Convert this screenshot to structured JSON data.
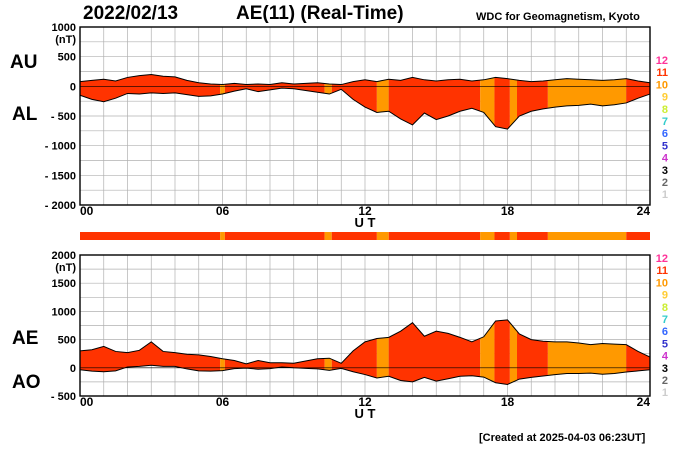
{
  "header": {
    "date": "2022/02/13",
    "title": "AE(11) (Real-Time)",
    "source": "WDC for Geomagnetism, Kyoto"
  },
  "footer": {
    "created": "[Created at 2025-04-03 06:23UT]"
  },
  "labels": {
    "au": "AU",
    "al": "AL",
    "ae": "AE",
    "ao": "AO",
    "nt": "(nT)",
    "xlabel": "U T"
  },
  "colors": {
    "level_11": "#ff3300",
    "level_10": "#ff9900",
    "outline": "#000000",
    "grid": "#b0b0b0"
  },
  "chart_data": [
    {
      "type": "area",
      "name": "AU/AL",
      "xlabel": "U T",
      "ylabel": "(nT)",
      "ylim": [
        -2000,
        1000
      ],
      "xlim": [
        0,
        24
      ],
      "xticks": [
        "00",
        "06",
        "12",
        "18",
        "24"
      ],
      "yticks": [
        "1000",
        "500",
        "0",
        "- 500",
        "- 1000",
        "- 1500",
        "- 2000"
      ],
      "grid": true,
      "x": [
        0,
        0.5,
        1,
        1.5,
        2,
        2.5,
        3,
        3.5,
        4,
        4.5,
        5,
        5.5,
        6,
        6.5,
        7,
        7.5,
        8,
        8.5,
        9,
        9.5,
        10,
        10.5,
        11,
        11.5,
        12,
        12.5,
        13,
        13.5,
        14,
        14.5,
        15,
        15.5,
        16,
        16.5,
        17,
        17.5,
        18,
        18.5,
        19,
        19.5,
        20,
        20.5,
        21,
        21.5,
        22,
        22.5,
        23,
        23.5,
        24
      ],
      "series": [
        {
          "name": "AU",
          "values": [
            80,
            100,
            120,
            90,
            150,
            180,
            200,
            170,
            160,
            100,
            60,
            40,
            30,
            50,
            30,
            40,
            30,
            60,
            40,
            50,
            60,
            40,
            30,
            80,
            110,
            80,
            120,
            100,
            150,
            110,
            90,
            110,
            120,
            90,
            110,
            150,
            130,
            100,
            80,
            90,
            110,
            130,
            120,
            110,
            100,
            110,
            130,
            90,
            60
          ]
        },
        {
          "name": "AL",
          "values": [
            -150,
            -220,
            -260,
            -200,
            -120,
            -130,
            -110,
            -120,
            -110,
            -140,
            -170,
            -160,
            -130,
            -80,
            -40,
            -90,
            -60,
            -30,
            -40,
            -70,
            -100,
            -130,
            -50,
            -220,
            -350,
            -440,
            -420,
            -550,
            -650,
            -450,
            -560,
            -500,
            -420,
            -370,
            -440,
            -680,
            -720,
            -500,
            -420,
            -380,
            -350,
            -330,
            -320,
            -300,
            -330,
            -310,
            -280,
            -200,
            -130
          ]
        }
      ],
      "activity_level": [
        {
          "from": 0,
          "to": 5.9,
          "level": 11
        },
        {
          "from": 5.9,
          "to": 6.1,
          "level": 10
        },
        {
          "from": 6.1,
          "to": 10.3,
          "level": 11
        },
        {
          "from": 10.3,
          "to": 10.6,
          "level": 10
        },
        {
          "from": 10.6,
          "to": 12.5,
          "level": 11
        },
        {
          "from": 12.5,
          "to": 13.0,
          "level": 10
        },
        {
          "from": 13.0,
          "to": 16.85,
          "level": 11
        },
        {
          "from": 16.85,
          "to": 17.45,
          "level": 10
        },
        {
          "from": 17.45,
          "to": 18.1,
          "level": 11
        },
        {
          "from": 18.1,
          "to": 18.4,
          "level": 10
        },
        {
          "from": 18.4,
          "to": 19.7,
          "level": 11
        },
        {
          "from": 19.7,
          "to": 23.0,
          "level": 10
        },
        {
          "from": 23.0,
          "to": 24,
          "level": 11
        }
      ]
    },
    {
      "type": "area",
      "name": "AE/AO",
      "xlabel": "U T",
      "ylabel": "(nT)",
      "ylim": [
        -500,
        2000
      ],
      "xlim": [
        0,
        24
      ],
      "xticks": [
        "00",
        "06",
        "12",
        "18",
        "24"
      ],
      "yticks": [
        "2000",
        "1500",
        "1000",
        "500",
        "0",
        "- 500"
      ],
      "grid": true,
      "x": [
        0,
        0.5,
        1,
        1.5,
        2,
        2.5,
        3,
        3.5,
        4,
        4.5,
        5,
        5.5,
        6,
        6.5,
        7,
        7.5,
        8,
        8.5,
        9,
        9.5,
        10,
        10.5,
        11,
        11.5,
        12,
        12.5,
        13,
        13.5,
        14,
        14.5,
        15,
        15.5,
        16,
        16.5,
        17,
        17.5,
        18,
        18.5,
        19,
        19.5,
        20,
        20.5,
        21,
        21.5,
        22,
        22.5,
        23,
        23.5,
        24
      ],
      "series": [
        {
          "name": "AE",
          "values": [
            300,
            320,
            380,
            290,
            270,
            310,
            460,
            290,
            270,
            240,
            230,
            200,
            160,
            130,
            70,
            130,
            90,
            90,
            80,
            120,
            160,
            170,
            80,
            300,
            460,
            520,
            540,
            650,
            800,
            560,
            650,
            610,
            540,
            460,
            550,
            830,
            850,
            600,
            500,
            470,
            460,
            460,
            440,
            410,
            430,
            420,
            410,
            290,
            190
          ]
        },
        {
          "name": "AO",
          "values": [
            -35,
            -60,
            -70,
            -55,
            15,
            25,
            45,
            25,
            25,
            -20,
            -55,
            -60,
            -50,
            -15,
            -5,
            -25,
            -15,
            15,
            0,
            -10,
            -20,
            -45,
            -10,
            -70,
            -120,
            -180,
            -150,
            -225,
            -250,
            -170,
            -235,
            -195,
            -150,
            -140,
            -165,
            -265,
            -295,
            -200,
            -170,
            -145,
            -120,
            -100,
            -100,
            -95,
            -115,
            -100,
            -75,
            -55,
            -35
          ]
        }
      ]
    }
  ],
  "legend_levels": [
    {
      "label": "12",
      "color": "#ff3399"
    },
    {
      "label": "11",
      "color": "#ff3300"
    },
    {
      "label": "10",
      "color": "#ff9900"
    },
    {
      "label": "9",
      "color": "#ffcc33"
    },
    {
      "label": "8",
      "color": "#ccee33"
    },
    {
      "label": "7",
      "color": "#33cccc"
    },
    {
      "label": "6",
      "color": "#3366ff"
    },
    {
      "label": "5",
      "color": "#3333cc"
    },
    {
      "label": "4",
      "color": "#cc33cc"
    },
    {
      "label": "3",
      "color": "#000000"
    },
    {
      "label": "2",
      "color": "#666666"
    },
    {
      "label": "1",
      "color": "#cccccc"
    }
  ]
}
